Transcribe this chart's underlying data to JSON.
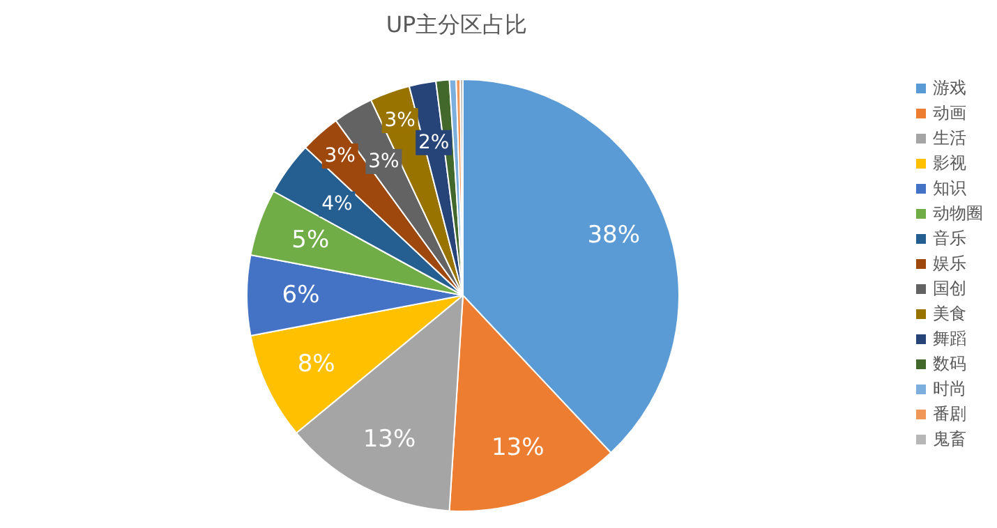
{
  "chart_data": {
    "type": "pie",
    "title": "UP主分区占比",
    "categories": [
      "游戏",
      "动画",
      "生活",
      "影视",
      "知识",
      "动物圈",
      "音乐",
      "娱乐",
      "国创",
      "美食",
      "舞蹈",
      "数码",
      "时尚",
      "番剧",
      "鬼畜"
    ],
    "values": [
      38,
      13,
      13,
      8,
      6,
      5,
      4,
      3,
      3,
      3,
      2,
      1,
      0.5,
      0.3,
      0.2
    ],
    "value_labels": [
      "38%",
      "13%",
      "13%",
      "8%",
      "6%",
      "5%",
      "4%",
      "3%",
      "3%",
      "3%",
      "2%",
      null,
      null,
      null,
      null
    ],
    "colors": [
      "#5b9bd5",
      "#ed7d31",
      "#a5a5a5",
      "#ffc000",
      "#4472c4",
      "#70ad47",
      "#255e91",
      "#9e480e",
      "#636363",
      "#997300",
      "#264478",
      "#43682b",
      "#7cafdd",
      "#f1975a",
      "#b7b7b7"
    ],
    "legend": "right"
  }
}
